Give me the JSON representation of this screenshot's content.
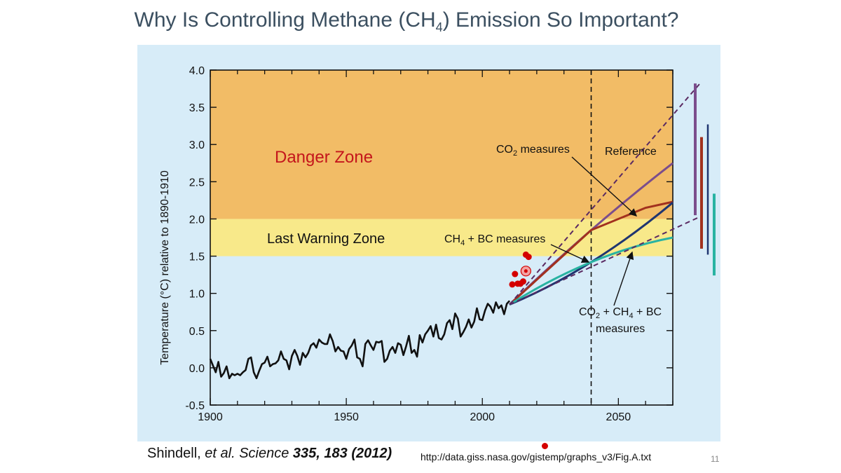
{
  "slide": {
    "title_main": "Why Is Controlling Methane (CH",
    "title_sub": "4",
    "title_end": ") Emission So Important?",
    "citation_author": "Shindell,",
    "citation_etal": "et al.",
    "citation_journal": "Science",
    "citation_volume": "335, 183 (2012)",
    "source_url": "http://data.giss.nasa.gov/gistemp/graphs_v3/Fig.A.txt",
    "page_number": "11"
  },
  "chart_data": {
    "type": "line",
    "title": "",
    "xlabel": "",
    "ylabel": "Temperature (°C) relative to 1890-1910",
    "xlim": [
      1900,
      2070
    ],
    "ylim": [
      -0.5,
      4.0
    ],
    "x_ticks": [
      "1900",
      "1950",
      "2000",
      "2050"
    ],
    "y_ticks": [
      "-0.5",
      "0.0",
      "0.5",
      "1.0",
      "1.5",
      "2.0",
      "2.5",
      "3.0",
      "3.5",
      "4.0"
    ],
    "zones": [
      {
        "name": "Danger Zone",
        "from": 2.0,
        "to": 4.0,
        "color": "#f2bc66",
        "label_color": "#c4161c"
      },
      {
        "name": "Last Warning Zone",
        "from": 1.5,
        "to": 2.0,
        "color": "#f8e98a",
        "label_color": "#111111"
      }
    ],
    "reference_year": 2040,
    "observed": {
      "name": "Observed",
      "x": [
        1900,
        1901,
        1902,
        1903,
        1904,
        1905,
        1906,
        1907,
        1908,
        1909,
        1910,
        1911,
        1912,
        1913,
        1914,
        1915,
        1916,
        1917,
        1918,
        1919,
        1920,
        1921,
        1922,
        1923,
        1924,
        1925,
        1926,
        1927,
        1928,
        1929,
        1930,
        1931,
        1932,
        1933,
        1934,
        1935,
        1936,
        1937,
        1938,
        1939,
        1940,
        1941,
        1942,
        1943,
        1944,
        1945,
        1946,
        1947,
        1948,
        1949,
        1950,
        1951,
        1952,
        1953,
        1954,
        1955,
        1956,
        1957,
        1958,
        1959,
        1960,
        1961,
        1962,
        1963,
        1964,
        1965,
        1966,
        1967,
        1968,
        1969,
        1970,
        1971,
        1972,
        1973,
        1974,
        1975,
        1976,
        1977,
        1978,
        1979,
        1980,
        1981,
        1982,
        1983,
        1984,
        1985,
        1986,
        1987,
        1988,
        1989,
        1990,
        1991,
        1992,
        1993,
        1994,
        1995,
        1996,
        1997,
        1998,
        1999,
        2000,
        2001,
        2002,
        2003,
        2004,
        2005,
        2006,
        2007,
        2008,
        2009,
        2010
      ],
      "y": [
        0.12,
        0.03,
        -0.06,
        0.08,
        -0.12,
        -0.07,
        0.02,
        -0.14,
        -0.08,
        -0.1,
        -0.08,
        -0.1,
        -0.06,
        -0.03,
        0.12,
        0.14,
        -0.06,
        -0.14,
        -0.04,
        0.05,
        0.07,
        0.15,
        0.02,
        0.05,
        0.06,
        0.1,
        0.22,
        0.12,
        0.1,
        -0.02,
        0.16,
        0.24,
        0.16,
        0.04,
        0.2,
        0.14,
        0.2,
        0.3,
        0.33,
        0.27,
        0.38,
        0.34,
        0.32,
        0.32,
        0.45,
        0.36,
        0.22,
        0.28,
        0.23,
        0.22,
        0.12,
        0.25,
        0.3,
        0.38,
        0.14,
        0.12,
        0.02,
        0.32,
        0.37,
        0.3,
        0.24,
        0.35,
        0.34,
        0.36,
        0.08,
        0.12,
        0.23,
        0.28,
        0.2,
        0.33,
        0.31,
        0.17,
        0.29,
        0.43,
        0.2,
        0.24,
        0.15,
        0.44,
        0.34,
        0.45,
        0.5,
        0.56,
        0.42,
        0.58,
        0.4,
        0.38,
        0.45,
        0.6,
        0.64,
        0.52,
        0.73,
        0.66,
        0.42,
        0.48,
        0.55,
        0.65,
        0.54,
        0.62,
        0.8,
        0.65,
        0.64,
        0.77,
        0.86,
        0.82,
        0.74,
        0.88,
        0.8,
        0.84,
        0.72,
        0.86,
        0.9
      ]
    },
    "recent_points": [
      {
        "x": 2012,
        "y": 1.26
      },
      {
        "x": 2011,
        "y": 1.12
      },
      {
        "x": 2013,
        "y": 1.13
      },
      {
        "x": 2014,
        "y": 1.13
      },
      {
        "x": 2015,
        "y": 1.16
      },
      {
        "x": 2016,
        "y": 1.52
      },
      {
        "x": 2017,
        "y": 1.49
      }
    ],
    "highlight_point": {
      "x": 2016,
      "y": 1.3
    },
    "series": [
      {
        "name": "Reference",
        "color": "#7b4d8c",
        "x": [
          2010,
          2040,
          2070
        ],
        "y": [
          0.85,
          1.85,
          2.75
        ]
      },
      {
        "name": "CO2 measures",
        "color": "#a2311e",
        "x": [
          2010,
          2040,
          2060,
          2070
        ],
        "y": [
          0.85,
          1.85,
          2.15,
          2.23
        ]
      },
      {
        "name": "CH4 + BC measures",
        "color": "#1f3570",
        "x": [
          2010,
          2040,
          2070
        ],
        "y": [
          0.85,
          1.42,
          2.22
        ]
      },
      {
        "name": "CO2 + CH4 + BC measures",
        "color": "#29b3a2",
        "x": [
          2010,
          2040,
          2070
        ],
        "y": [
          0.85,
          1.42,
          1.75
        ]
      },
      {
        "name": "Upper bound",
        "color": "#5a2a62",
        "style": "dashed",
        "x": [
          2010,
          2080
        ],
        "y": [
          0.85,
          3.82
        ]
      },
      {
        "name": "Lower bound",
        "color": "#5a2a62",
        "style": "dashed",
        "x": [
          2010,
          2080
        ],
        "y": [
          0.85,
          2.03
        ]
      }
    ],
    "annotations": [
      {
        "text_main": "Danger Zone",
        "id": "danger"
      },
      {
        "text_main": "Last Warning Zone",
        "id": "warning"
      },
      {
        "text_main": "CO",
        "text_sub": "2",
        "text_end": " measures",
        "id": "co2"
      },
      {
        "text_main": "Reference",
        "id": "reference"
      },
      {
        "text_main": "CH",
        "text_sub": "4",
        "text_end": " + BC measures",
        "id": "ch4bc"
      },
      {
        "text_main": "CO",
        "text_sub": "2",
        "text_end": " + CH",
        "text_sub2": "4",
        "text_end2": " + BC",
        "line2": "measures",
        "id": "combined"
      }
    ],
    "range_bars": [
      {
        "name": "Reference",
        "color": "#7b4d8c",
        "from": 2.05,
        "to": 3.82
      },
      {
        "name": "CO2 measures",
        "color": "#a2311e",
        "from": 1.6,
        "to": 3.1
      },
      {
        "name": "CH4 + BC measures",
        "color": "#1f3570",
        "from": 1.52,
        "to": 3.27
      },
      {
        "name": "CO2 + CH4 + BC measures",
        "color": "#29b3a2",
        "from": 1.24,
        "to": 2.34
      }
    ]
  }
}
